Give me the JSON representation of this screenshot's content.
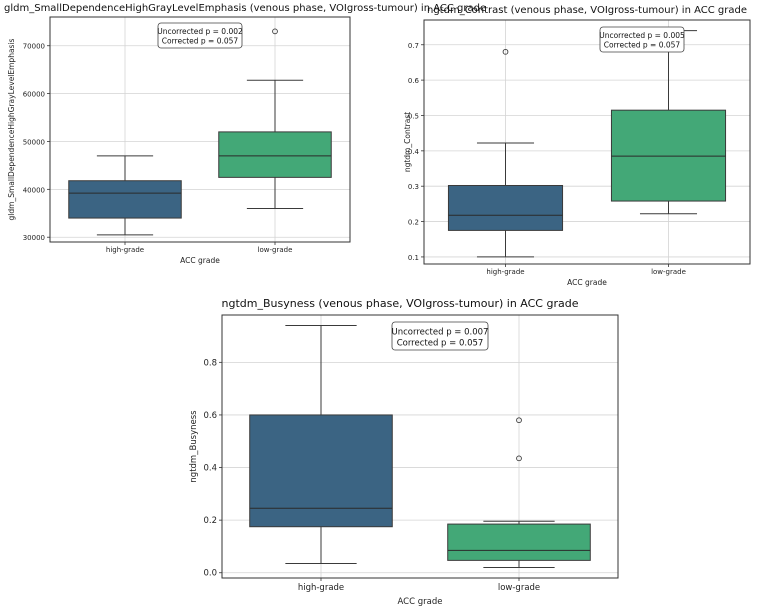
{
  "chart_data": [
    {
      "type": "box",
      "title": "gldm_SmallDependenceHighGrayLevelEmphasis (venous phase, VOIgross-tumour) in ACC grade",
      "xlabel": "ACC grade",
      "ylabel": "gldm_SmallDependenceHighGrayLevelEmphasis",
      "categories": [
        "high-grade",
        "low-grade"
      ],
      "colors": [
        "#3b6483",
        "#43a877"
      ],
      "ylim": [
        29000,
        76000
      ],
      "yticks": [
        30000,
        40000,
        50000,
        60000,
        70000
      ],
      "boxes": [
        {
          "whisker_low": 30500,
          "q1": 34000,
          "median": 39200,
          "q3": 41800,
          "whisker_high": 47000,
          "outliers": []
        },
        {
          "whisker_low": 36000,
          "q1": 42500,
          "median": 47000,
          "q3": 52000,
          "whisker_high": 62800,
          "outliers": [
            73000
          ]
        }
      ],
      "annotation": [
        "Uncorrected p = 0.002",
        "Corrected p = 0.057"
      ],
      "grid": true
    },
    {
      "type": "box",
      "title": "ngtdm_Contrast (venous phase, VOIgross-tumour) in ACC grade",
      "xlabel": "ACC grade",
      "ylabel": "ngtdm_Contrast",
      "categories": [
        "high-grade",
        "low-grade"
      ],
      "colors": [
        "#3b6483",
        "#43a877"
      ],
      "ylim": [
        0.08,
        0.77
      ],
      "yticks": [
        0.1,
        0.2,
        0.3,
        0.4,
        0.5,
        0.6,
        0.7
      ],
      "ytick_labels": [
        "0.1",
        "0.2",
        "0.3",
        "0.4",
        "0.5",
        "0.6",
        "0.7"
      ],
      "boxes": [
        {
          "whisker_low": 0.1,
          "q1": 0.175,
          "median": 0.218,
          "q3": 0.302,
          "whisker_high": 0.422,
          "outliers": [
            0.68
          ]
        },
        {
          "whisker_low": 0.222,
          "q1": 0.258,
          "median": 0.385,
          "q3": 0.515,
          "whisker_high": 0.74,
          "outliers": []
        }
      ],
      "annotation": [
        "Uncorrected p = 0.005",
        "Corrected p = 0.057"
      ],
      "grid": true
    },
    {
      "type": "box",
      "title": "ngtdm_Busyness (venous phase, VOIgross-tumour) in ACC grade",
      "xlabel": "ACC grade",
      "ylabel": "ngtdm_Busyness",
      "categories": [
        "high-grade",
        "low-grade"
      ],
      "colors": [
        "#3b6483",
        "#43a877"
      ],
      "ylim": [
        -0.02,
        0.98
      ],
      "yticks": [
        0.0,
        0.2,
        0.4,
        0.6,
        0.8
      ],
      "ytick_labels": [
        "0.0",
        "0.2",
        "0.4",
        "0.6",
        "0.8"
      ],
      "boxes": [
        {
          "whisker_low": 0.035,
          "q1": 0.175,
          "median": 0.245,
          "q3": 0.6,
          "whisker_high": 0.94,
          "outliers": []
        },
        {
          "whisker_low": 0.02,
          "q1": 0.047,
          "median": 0.085,
          "q3": 0.185,
          "whisker_high": 0.196,
          "outliers": [
            0.435,
            0.58
          ]
        }
      ],
      "annotation": [
        "Uncorrected p = 0.007",
        "Corrected p = 0.057"
      ],
      "grid": true
    }
  ]
}
